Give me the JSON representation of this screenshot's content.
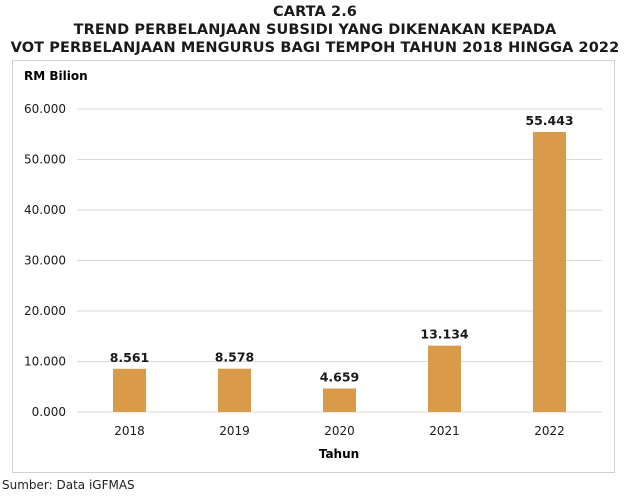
{
  "title": {
    "line1": "CARTA 2.6",
    "line2": "TREND PERBELANJAAN SUBSIDI YANG DIKENAKAN KEPADA",
    "line3": "VOT PERBELANJAAN MENGURUS BAGI TEMPOH TAHUN 2018 HINGGA 2022"
  },
  "source": "Sumber: Data iGFMAS",
  "colors": {
    "bar": "#D99B4A",
    "grid": "#D9D9D9",
    "text": "#1a1a1a"
  },
  "chart_data": {
    "type": "bar",
    "title": "TREND PERBELANJAAN SUBSIDI YANG DIKENAKAN KEPADA VOT PERBELANJAAN MENGURUS BAGI TEMPOH TAHUN 2018 HINGGA 2022",
    "xlabel": "Tahun",
    "ylabel": "RM Bilion",
    "categories": [
      "2018",
      "2019",
      "2020",
      "2021",
      "2022"
    ],
    "values": [
      8561,
      8578,
      4659,
      13134,
      55443
    ],
    "data_labels": [
      "8.561",
      "8.578",
      "4.659",
      "13.134",
      "55.443"
    ],
    "ylim": [
      0,
      60000
    ],
    "yticks": [
      0,
      10000,
      20000,
      30000,
      40000,
      50000,
      60000
    ],
    "ytick_labels": [
      "0.000",
      "10.000",
      "20.000",
      "30.000",
      "40.000",
      "50.000",
      "60.000"
    ],
    "grid": true,
    "legend": "none"
  }
}
